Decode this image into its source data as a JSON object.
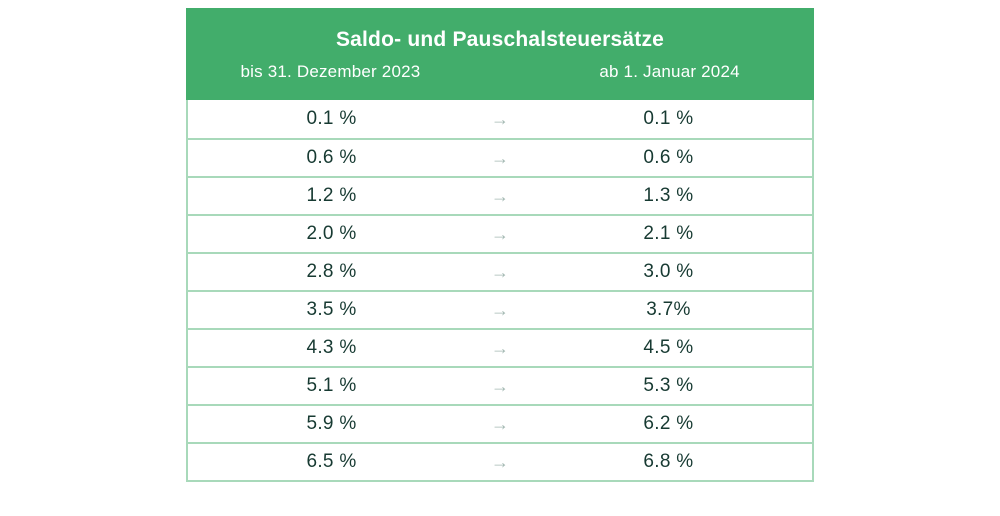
{
  "table": {
    "title": "Saldo- und Pauschalsteuersätze",
    "column_before": "bis 31. Dezember 2023",
    "column_after": "ab 1. Januar 2024",
    "arrow_glyph": "→",
    "rows": [
      {
        "before": "0.1 %",
        "after": "0.1 %"
      },
      {
        "before": "0.6 %",
        "after": "0.6 %"
      },
      {
        "before": "1.2 %",
        "after": "1.3 %"
      },
      {
        "before": "2.0 %",
        "after": "2.1 %"
      },
      {
        "before": "2.8 %",
        "after": "3.0 %"
      },
      {
        "before": "3.5 %",
        "after": "3.7%"
      },
      {
        "before": "4.3 %",
        "after": "4.5 %"
      },
      {
        "before": "5.1 %",
        "after": "5.3 %"
      },
      {
        "before": "5.9 %",
        "after": "6.2 %"
      },
      {
        "before": "6.5 %",
        "after": "6.8 %"
      }
    ]
  },
  "chart_data": {
    "type": "table",
    "title": "Saldo- und Pauschalsteuersätze",
    "columns": [
      "bis 31. Dezember 2023",
      "ab 1. Januar 2024"
    ],
    "rows": [
      [
        "0.1 %",
        "0.1 %"
      ],
      [
        "0.6 %",
        "0.6 %"
      ],
      [
        "1.2 %",
        "1.3 %"
      ],
      [
        "2.0 %",
        "2.1 %"
      ],
      [
        "2.8 %",
        "3.0 %"
      ],
      [
        "3.5 %",
        "3.7%"
      ],
      [
        "4.3 %",
        "4.5 %"
      ],
      [
        "5.1 %",
        "5.3 %"
      ],
      [
        "5.9 %",
        "6.2 %"
      ],
      [
        "6.5 %",
        "6.8 %"
      ]
    ],
    "series": [
      {
        "name": "bis 31. Dezember 2023",
        "values": [
          0.1,
          0.6,
          1.2,
          2.0,
          2.8,
          3.5,
          4.3,
          5.1,
          5.9,
          6.5
        ]
      },
      {
        "name": "ab 1. Januar 2024",
        "values": [
          0.1,
          0.6,
          1.3,
          2.1,
          3.0,
          3.7,
          4.5,
          5.3,
          6.2,
          6.8
        ]
      }
    ],
    "unit": "%"
  },
  "colors": {
    "header_bg": "#42ad6b",
    "header_text": "#ffffff",
    "value_text": "#173a32",
    "border": "#a8d9ba",
    "arrow": "#a4b9b3",
    "page_bg": "#ffffff"
  }
}
